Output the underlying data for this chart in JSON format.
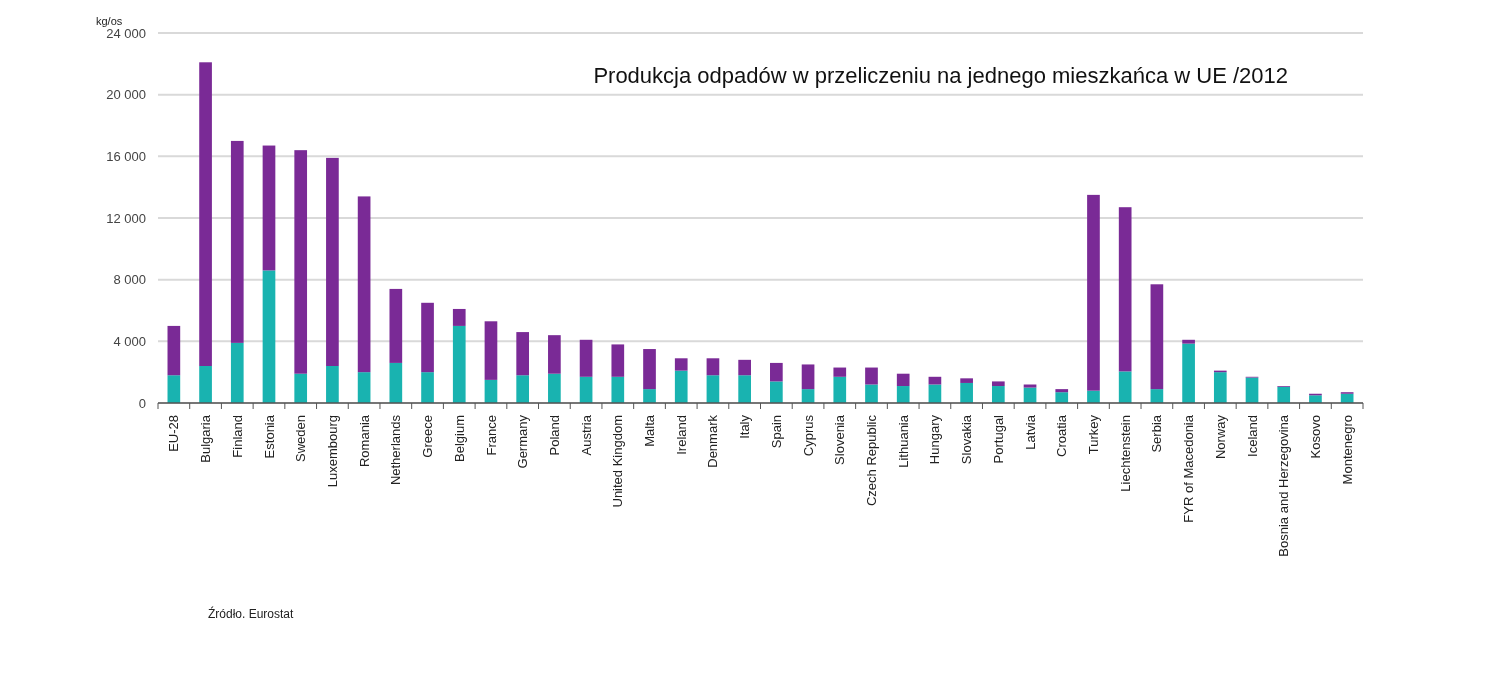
{
  "chart_data": {
    "type": "bar",
    "title": "Produkcja odpadów w przeliczeniu na jednego mieszkańca w UE /2012",
    "ylabel": "kg/os",
    "annotations": [
      "Źródło. Eurostat"
    ],
    "categories": [
      "EU-28",
      "Bulgaria",
      "Finland",
      "Estonia",
      "Sweden",
      "Luxembourg",
      "Romania",
      "Netherlands",
      "Greece",
      "Belgium",
      "France",
      "Germany",
      "Poland",
      "Austria",
      "United Kingdom",
      "Malta",
      "Ireland",
      "Denmark",
      "Italy",
      "Spain",
      "Cyprus",
      "Slovenia",
      "Czech Republic",
      "Lithuania",
      "Hungary",
      "Slovakia",
      "Portugal",
      "Latvia",
      "Croatia",
      "Turkey",
      "Liechtenstein",
      "Serbia",
      "FYR of Macedonia",
      "Norway",
      "Iceland",
      "Bosnia and Herzegovina",
      "Kosovo",
      "Montenegro"
    ],
    "stacked": true,
    "series": [
      {
        "color": "#19b3b0",
        "values": [
          1800,
          2400,
          3900,
          8600,
          1900,
          2400,
          2000,
          2600,
          2000,
          5000,
          1500,
          1800,
          1900,
          1700,
          1700,
          900,
          2100,
          1800,
          1800,
          1400,
          900,
          1700,
          1200,
          1100,
          1200,
          1300,
          1100,
          1000,
          700,
          800,
          2050,
          900,
          3850,
          2000,
          1650,
          1050,
          500,
          600
        ]
      },
      {
        "color": "#7a2a96",
        "values": [
          3200,
          19700,
          13100,
          8100,
          14500,
          13500,
          11400,
          4800,
          4500,
          1100,
          3800,
          2800,
          2500,
          2400,
          2100,
          2600,
          800,
          1100,
          1000,
          1200,
          1600,
          600,
          1100,
          800,
          500,
          300,
          300,
          200,
          200,
          12700,
          10650,
          6800,
          250,
          100,
          50,
          50,
          100,
          100
        ]
      }
    ],
    "ylim": [
      0,
      24000
    ],
    "yticks": [
      {
        "value": 0,
        "label": "0"
      },
      {
        "value": 4000,
        "label": "4 000"
      },
      {
        "value": 8000,
        "label": "8 000"
      },
      {
        "value": 12000,
        "label": "12 000"
      },
      {
        "value": 16000,
        "label": "16 000"
      },
      {
        "value": 20000,
        "label": "20 000"
      },
      {
        "value": 24000,
        "label": "24 000"
      }
    ],
    "grid": "y"
  }
}
